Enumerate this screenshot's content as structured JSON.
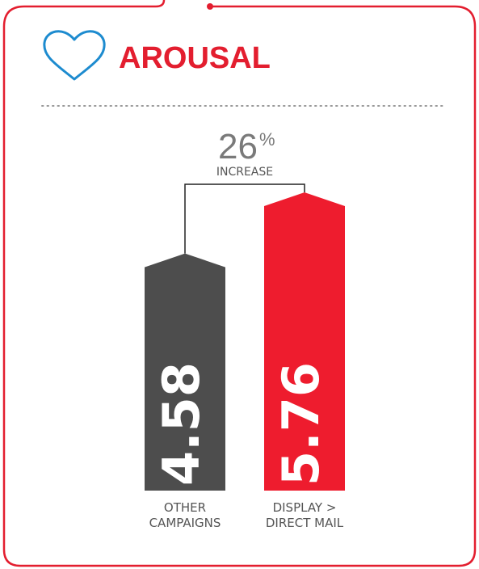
{
  "chart_data": {
    "type": "bar",
    "title": "AROUSAL",
    "annotation": {
      "number": "26",
      "symbol": "%",
      "label": "INCREASE"
    },
    "categories": [
      "OTHER CAMPAIGNS",
      "DISPLAY > DIRECT MAIL"
    ],
    "values": [
      4.58,
      5.76
    ],
    "colors": [
      "#4d4d4d",
      "#ee1c2e"
    ]
  }
}
